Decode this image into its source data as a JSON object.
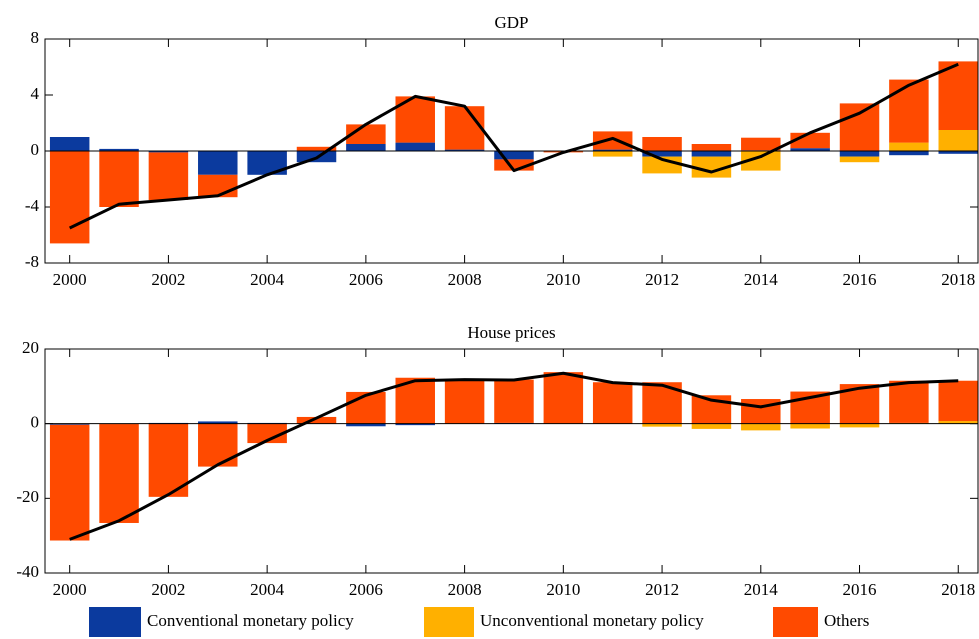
{
  "chart_data": [
    {
      "type": "bar",
      "title": "GDP",
      "legend": "bottom",
      "x": [
        2000,
        2001,
        2002,
        2003,
        2004,
        2005,
        2006,
        2007,
        2008,
        2009,
        2010,
        2011,
        2012,
        2013,
        2014,
        2015,
        2016,
        2017,
        2018
      ],
      "xlim": [
        1999.5,
        2018.4
      ],
      "xticks": [
        2000,
        2002,
        2004,
        2006,
        2008,
        2010,
        2012,
        2014,
        2016,
        2018
      ],
      "ylim": [
        -8,
        8
      ],
      "yticks": [
        8,
        4,
        0,
        -4,
        -8
      ],
      "series": [
        {
          "name": "Conventional monetary policy",
          "color": "#0b3a9e",
          "values": [
            1.0,
            0.15,
            -0.1,
            -1.7,
            -1.7,
            -0.8,
            0.5,
            0.6,
            0.1,
            -0.6,
            0,
            0.1,
            -0.4,
            -0.4,
            0.05,
            0.2,
            -0.4,
            -0.3,
            -0.2
          ]
        },
        {
          "name": "Unconventional monetary policy",
          "color": "#ffb000",
          "values": [
            0,
            0,
            0,
            0,
            0,
            0,
            0,
            0,
            0,
            0,
            0,
            -0.4,
            -1.2,
            -1.5,
            -1.4,
            0,
            -0.4,
            0.6,
            1.5
          ]
        },
        {
          "name": "Others",
          "color": "#ff4a00",
          "values": [
            -6.6,
            -4.0,
            -3.4,
            -1.6,
            0,
            0.3,
            1.4,
            3.3,
            3.1,
            -0.8,
            -0.1,
            1.3,
            1.0,
            0.5,
            0.9,
            1.1,
            3.4,
            4.5,
            4.9
          ]
        },
        {
          "type": "line",
          "color": "#000000",
          "values": [
            -5.5,
            -3.8,
            -3.5,
            -3.2,
            -1.7,
            -0.5,
            1.9,
            3.9,
            3.2,
            -1.4,
            -0.1,
            0.9,
            -0.6,
            -1.5,
            -0.4,
            1.3,
            2.7,
            4.7,
            6.2
          ]
        }
      ]
    },
    {
      "type": "bar",
      "title": "House prices",
      "x": [
        2000,
        2001,
        2002,
        2003,
        2004,
        2005,
        2006,
        2007,
        2008,
        2009,
        2010,
        2011,
        2012,
        2013,
        2014,
        2015,
        2016,
        2017,
        2018
      ],
      "xlim": [
        1999.5,
        2018.4
      ],
      "xticks": [
        2000,
        2002,
        2004,
        2006,
        2008,
        2010,
        2012,
        2014,
        2016,
        2018
      ],
      "ylim": [
        -40,
        20
      ],
      "yticks": [
        20,
        0,
        -20,
        -40
      ],
      "series": [
        {
          "color": "#0b3a9e",
          "values": [
            -0.3,
            -0.1,
            0.2,
            0.6,
            0.2,
            0,
            -0.7,
            -0.4,
            0,
            0.2,
            0,
            0,
            0,
            0,
            0,
            0,
            0,
            0,
            0
          ]
        },
        {
          "color": "#ffb000",
          "values": [
            0,
            0,
            0,
            0,
            0,
            0,
            0,
            0,
            0,
            0,
            0,
            0,
            -0.8,
            -1.4,
            -1.8,
            -1.3,
            -1.0,
            0.2,
            0.7
          ]
        },
        {
          "color": "#ff4a00",
          "values": [
            -31,
            -26.5,
            -19.6,
            -11.5,
            -5.2,
            1.8,
            8.5,
            12.3,
            11.9,
            11.6,
            13.8,
            11.1,
            11.1,
            7.6,
            6.6,
            8.6,
            10.6,
            11.3,
            10.8
          ]
        },
        {
          "type": "line",
          "color": "#000000",
          "values": [
            -31,
            -26,
            -19,
            -11,
            -4.5,
            1.5,
            7.6,
            11.5,
            11.8,
            11.7,
            13.5,
            11,
            10.3,
            6.3,
            4.5,
            7,
            9.5,
            11,
            11.5
          ]
        }
      ]
    }
  ]
}
